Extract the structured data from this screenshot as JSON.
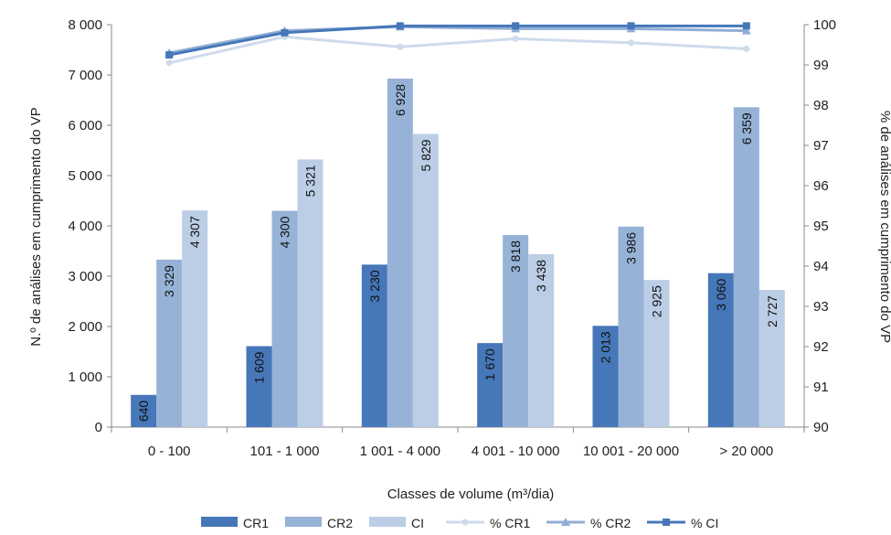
{
  "chart_data": {
    "type": "bar",
    "categories": [
      "0 - 100",
      "101 - 1 000",
      "1 001 - 4 000",
      "4 001 - 10 000",
      "10 001 - 20 000",
      "> 20 000"
    ],
    "series": [
      {
        "name": "CR1",
        "kind": "bar",
        "axis": "left",
        "color": "#4677b9",
        "values": [
          640,
          1609,
          3230,
          1670,
          2013,
          3060
        ],
        "labels": [
          "640",
          "1 609",
          "3 230",
          "1 670",
          "2 013",
          "3 060"
        ]
      },
      {
        "name": "CR2",
        "kind": "bar",
        "axis": "left",
        "color": "#96b2d7",
        "values": [
          3329,
          4300,
          6928,
          3818,
          3986,
          6359
        ],
        "labels": [
          "3 329",
          "4 300",
          "6 928",
          "3 818",
          "3 986",
          "6 359"
        ]
      },
      {
        "name": "CI",
        "kind": "bar",
        "axis": "left",
        "color": "#bccee6",
        "values": [
          4307,
          5321,
          5829,
          3438,
          2925,
          2727
        ],
        "labels": [
          "4 307",
          "5 321",
          "5 829",
          "3 438",
          "2 925",
          "2 727"
        ]
      },
      {
        "name": "% CR1",
        "kind": "line",
        "axis": "right",
        "color": "#cedbec",
        "marker": "circle",
        "values": [
          99.05,
          99.7,
          99.45,
          99.65,
          99.55,
          99.4
        ]
      },
      {
        "name": "% CR2",
        "kind": "line",
        "axis": "right",
        "color": "#92aed5",
        "marker": "triangle",
        "values": [
          99.3,
          99.85,
          99.95,
          99.9,
          99.9,
          99.85
        ]
      },
      {
        "name": "% CI",
        "kind": "line",
        "axis": "right",
        "color": "#4677b9",
        "marker": "square",
        "values": [
          99.25,
          99.8,
          99.97,
          99.97,
          99.97,
          99.97
        ]
      }
    ],
    "xlabel": "Classes de volume (m³/dia)",
    "ylabel": "N.º de análises em cumprimento do VP",
    "y2label": "% de análises em cumprimento do VP",
    "ylim": [
      0,
      8000
    ],
    "y2lim": [
      90,
      100
    ],
    "yticks": [
      0,
      1000,
      2000,
      3000,
      4000,
      5000,
      6000,
      7000,
      8000
    ],
    "ytick_labels": [
      "0",
      "1 000",
      "2 000",
      "3 000",
      "4 000",
      "5 000",
      "6 000",
      "7 000",
      "8 000"
    ],
    "y2ticks": [
      90,
      91,
      92,
      93,
      94,
      95,
      96,
      97,
      98,
      99,
      100
    ],
    "y2tick_labels": [
      "90",
      "91",
      "92",
      "93",
      "94",
      "95",
      "96",
      "97",
      "98",
      "99",
      "100"
    ],
    "grid": false,
    "legend": "bottom"
  }
}
